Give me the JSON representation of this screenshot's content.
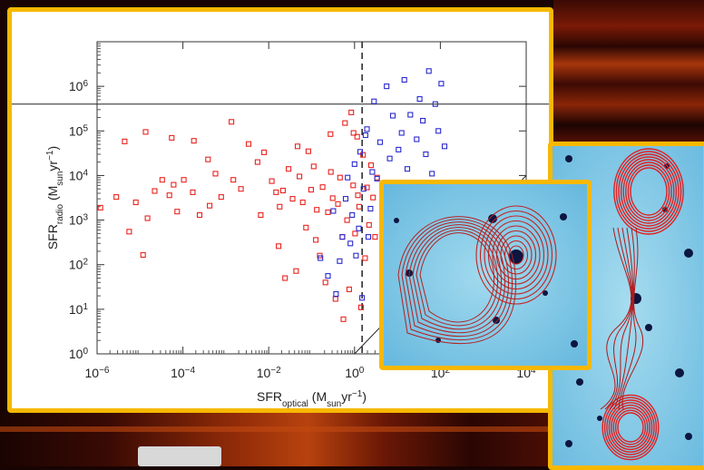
{
  "chart_data": {
    "type": "scatter",
    "xlabel": {
      "main": "SFR",
      "sub": "optical",
      "units_pre": " (M",
      "units_sub": "sun",
      "units_post": "yr",
      "units_sup": "−1",
      "close": ")"
    },
    "ylabel": {
      "main": "SFR",
      "sub": "radio",
      "units_pre": " (M",
      "units_sub": "sun",
      "units_post": "yr",
      "units_sup": "−1",
      "close": ")"
    },
    "xscale": "log",
    "yscale": "log",
    "xlim": [
      1e-06,
      10000.0
    ],
    "ylim": [
      1,
      10000000.0
    ],
    "x_ticks": [
      {
        "base": "10",
        "exp": "−6",
        "value": 1e-06
      },
      {
        "base": "10",
        "exp": "−4",
        "value": 0.0001
      },
      {
        "base": "10",
        "exp": "−2",
        "value": 0.01
      },
      {
        "base": "10",
        "exp": "0",
        "value": 1
      },
      {
        "base": "10",
        "exp": "2",
        "value": 100
      },
      {
        "base": "10",
        "exp": "4",
        "value": 10000
      }
    ],
    "y_ticks": [
      {
        "base": "10",
        "exp": "0",
        "value": 1
      },
      {
        "base": "10",
        "exp": "1",
        "value": 10
      },
      {
        "base": "10",
        "exp": "2",
        "value": 100
      },
      {
        "base": "10",
        "exp": "3",
        "value": 1000
      },
      {
        "base": "10",
        "exp": "4",
        "value": 10000
      },
      {
        "base": "10",
        "exp": "5",
        "value": 100000
      },
      {
        "base": "10",
        "exp": "6",
        "value": 1000000
      }
    ],
    "reference_lines": {
      "horizontal_y": 400000,
      "vertical_x": 1.5,
      "diagonal": "y = x"
    },
    "series": [
      {
        "color": "#e8241f",
        "marker": "open-square",
        "points": [
          [
            7.25e-07,
            11000
          ],
          [
            4.4e-06,
            58000
          ],
          [
            1.35e-05,
            95000
          ],
          [
            5.5e-05,
            70000
          ],
          [
            0.00018,
            60000
          ],
          [
            1.2e-06,
            1900
          ],
          [
            5.6e-06,
            550
          ],
          [
            8e-06,
            2500
          ],
          [
            1.18e-05,
            165
          ],
          [
            2.2e-05,
            4500
          ],
          [
            3.3e-05,
            8000
          ],
          [
            4.85e-05,
            3600
          ],
          [
            7.35e-05,
            1550
          ],
          [
            0.000105,
            8000
          ],
          [
            0.00017,
            4200
          ],
          [
            0.000245,
            1300
          ],
          [
            0.000385,
            23000
          ],
          [
            0.000575,
            11000
          ],
          [
            0.00078,
            3300
          ],
          [
            0.00135,
            160000
          ],
          [
            0.00225,
            5000
          ],
          [
            0.0034,
            51000
          ],
          [
            0.0055,
            20000
          ],
          [
            0.0078,
            33000
          ],
          [
            0.0118,
            7500
          ],
          [
            0.0148,
            4200
          ],
          [
            0.018,
            2000
          ],
          [
            0.0215,
            4600
          ],
          [
            0.024,
            50
          ],
          [
            0.029,
            14000
          ],
          [
            0.036,
            3000
          ],
          [
            0.0435,
            72
          ],
          [
            0.052,
            9500
          ],
          [
            0.062,
            2500
          ],
          [
            0.074,
            680
          ],
          [
            0.084,
            35000
          ],
          [
            0.097,
            4800
          ],
          [
            0.112,
            16000
          ],
          [
            0.132,
            1700
          ],
          [
            0.155,
            160
          ],
          [
            0.18,
            5500
          ],
          [
            0.21,
            40
          ],
          [
            0.24,
            1500
          ],
          [
            0.275,
            85000
          ],
          [
            0.31,
            3100
          ],
          [
            0.36,
            17
          ],
          [
            0.41,
            2300
          ],
          [
            0.46,
            9000
          ],
          [
            0.52,
            420
          ],
          [
            0.6,
            150000
          ],
          [
            0.67,
            1000
          ],
          [
            0.75,
            28
          ],
          [
            0.84,
            260000
          ],
          [
            0.93,
            6000
          ],
          [
            1.03,
            500
          ],
          [
            1.15,
            74000
          ],
          [
            1.28,
            2000
          ],
          [
            1.42,
            11
          ],
          [
            1.58,
            29000
          ],
          [
            1.76,
            140
          ],
          [
            1.95,
            5400
          ],
          [
            2.18,
            780
          ],
          [
            2.42,
            17000
          ],
          [
            2.7,
            3200
          ],
          [
            3.0,
            420
          ],
          [
            3.35,
            9000
          ],
          [
            2.8e-06,
            3300
          ],
          [
            1.5e-05,
            1100
          ],
          [
            6.1e-05,
            6200
          ],
          [
            0.00042,
            2100
          ],
          [
            0.0015,
            8000
          ],
          [
            0.0065,
            1300
          ],
          [
            0.017,
            260
          ],
          [
            0.047,
            45000
          ],
          [
            0.125,
            360
          ],
          [
            0.28,
            12000
          ],
          [
            0.55,
            6
          ],
          [
            0.95,
            90000
          ],
          [
            1.2,
            3600
          ]
        ]
      },
      {
        "color": "#2a2ad0",
        "marker": "open-square",
        "points": [
          [
            0.16,
            140
          ],
          [
            0.24,
            56
          ],
          [
            0.37,
            22
          ],
          [
            0.52,
            420
          ],
          [
            0.69,
            9000
          ],
          [
            0.88,
            1300
          ],
          [
            1.08,
            160
          ],
          [
            1.35,
            34000
          ],
          [
            1.62,
            5000
          ],
          [
            1.95,
            110000
          ],
          [
            2.35,
            1800
          ],
          [
            2.85,
            460000
          ],
          [
            3.35,
            8500
          ],
          [
            3.95,
            56000
          ],
          [
            4.7,
            2000
          ],
          [
            5.6,
            1000000
          ],
          [
            6.6,
            24000
          ],
          [
            7.8,
            220000
          ],
          [
            9.1,
            4200
          ],
          [
            10.6,
            38000
          ],
          [
            12.5,
            90000
          ],
          [
            14.5,
            1400000
          ],
          [
            17,
            14000
          ],
          [
            20,
            230000
          ],
          [
            24,
            5600
          ],
          [
            28,
            65000
          ],
          [
            33,
            520000
          ],
          [
            39,
            170000
          ],
          [
            46,
            30000
          ],
          [
            54,
            2200000
          ],
          [
            64,
            11000
          ],
          [
            76,
            400000
          ],
          [
            90,
            100000
          ],
          [
            105,
            1150000
          ],
          [
            125,
            45000
          ],
          [
            0.32,
            1600
          ],
          [
            0.45,
            120
          ],
          [
            0.62,
            3000
          ],
          [
            0.8,
            300
          ],
          [
            1.0,
            18000
          ],
          [
            1.26,
            650
          ],
          [
            1.5,
            18
          ],
          [
            1.8,
            80000
          ],
          [
            2.1,
            420
          ],
          [
            2.6,
            12000
          ]
        ]
      }
    ]
  }
}
